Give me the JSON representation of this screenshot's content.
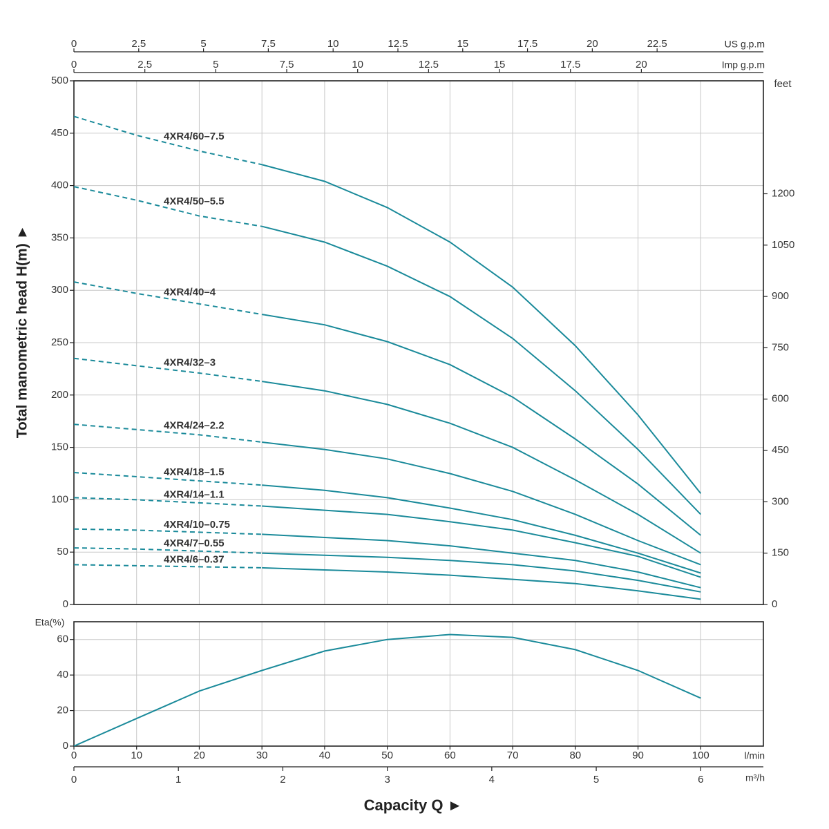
{
  "chart_data": [
    {
      "type": "line",
      "ylabel": "Total manometric head H(m) ►",
      "color": "#1a8a9a",
      "x": [
        0,
        10,
        20,
        30,
        40,
        50,
        60,
        70,
        80,
        90,
        100
      ],
      "xlim": [
        0,
        110
      ],
      "dashed_to_x": 30,
      "series": [
        {
          "name": "4XR4/60–7.5",
          "values": [
            466,
            448,
            433,
            420,
            404,
            379,
            346,
            303,
            247,
            181,
            106
          ]
        },
        {
          "name": "4XR4/50–5.5",
          "values": [
            399,
            386,
            371,
            361,
            346,
            323,
            294,
            254,
            204,
            148,
            86
          ]
        },
        {
          "name": "4XR4/40–4",
          "values": [
            308,
            297,
            287,
            277,
            267,
            251,
            229,
            198,
            158,
            115,
            66
          ]
        },
        {
          "name": "4XR4/32–3",
          "values": [
            235,
            228,
            221,
            213,
            204,
            191,
            173,
            150,
            119,
            86,
            49
          ]
        },
        {
          "name": "4XR4/24–2.2",
          "values": [
            172,
            167,
            162,
            155,
            148,
            139,
            125,
            108,
            86,
            61,
            38
          ]
        },
        {
          "name": "4XR4/18–1.5",
          "values": [
            126,
            122,
            118,
            114,
            109,
            102,
            92,
            81,
            66,
            49,
            30
          ]
        },
        {
          "name": "4XR4/14–1.1",
          "values": [
            102,
            100,
            97,
            94,
            90,
            86,
            79,
            71,
            59,
            46,
            26
          ]
        },
        {
          "name": "4XR4/10–0.75",
          "values": [
            72,
            71,
            69,
            67,
            64,
            61,
            56,
            49,
            42,
            31,
            16
          ]
        },
        {
          "name": "4XR4/7–0.55",
          "values": [
            54,
            53,
            51,
            49,
            47,
            45,
            42,
            38,
            32,
            23,
            12
          ]
        },
        {
          "name": "4XR4/6–0.37",
          "values": [
            38,
            37,
            36,
            35,
            33,
            31,
            28,
            24,
            20,
            13,
            5
          ]
        }
      ],
      "ylim": [
        0,
        500
      ],
      "yticks": [
        0,
        50,
        100,
        150,
        200,
        250,
        300,
        350,
        400,
        450,
        500
      ],
      "y2label": "feet",
      "y2lim": [
        0,
        1530
      ],
      "y2ticks": [
        0,
        150,
        300,
        450,
        600,
        750,
        900,
        1050,
        1200
      ],
      "top_axes": [
        {
          "label": "US g.p.m",
          "lim": [
            0,
            26.6
          ],
          "ticks": [
            0,
            2.5,
            5,
            7.5,
            10,
            12.5,
            15,
            17.5,
            20,
            22.5
          ]
        },
        {
          "label": "Imp g.p.m",
          "lim": [
            0,
            24.3
          ],
          "ticks": [
            0,
            2.5,
            5,
            7.5,
            10,
            12.5,
            15,
            17.5,
            20
          ]
        }
      ],
      "grid": true
    },
    {
      "type": "line",
      "ylabel": "Eta(%)",
      "color": "#1a8a9a",
      "x": [
        0,
        10,
        20,
        30,
        40,
        50,
        60,
        70,
        80,
        90,
        100
      ],
      "values": [
        0,
        15.5,
        31,
        42.6,
        53.5,
        60,
        62.8,
        61.2,
        54.3,
        42.6,
        27
      ],
      "ylim": [
        0,
        70
      ],
      "yticks": [
        0,
        20,
        40,
        60
      ],
      "xlim": [
        0,
        110
      ],
      "xticks": [
        0,
        10,
        20,
        30,
        40,
        50,
        60,
        70,
        80,
        90,
        100
      ],
      "xlabel": "l/min",
      "x2label": "m³/h",
      "x2lim": [
        0,
        6.6
      ],
      "x2ticks": [
        0,
        1,
        2,
        3,
        4,
        5,
        6
      ],
      "title": "Capacity Q ►",
      "grid": true
    }
  ]
}
